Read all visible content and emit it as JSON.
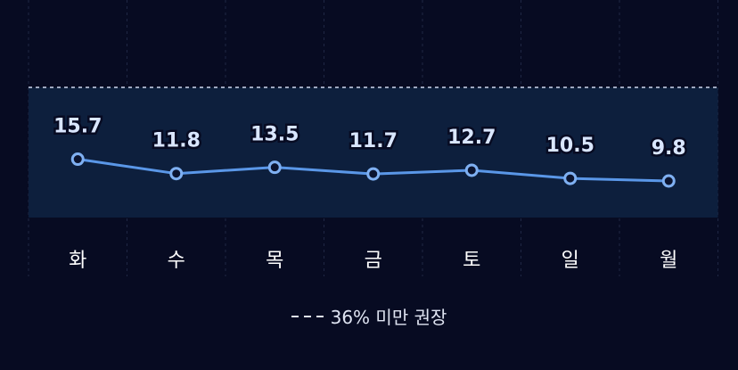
{
  "chart_data": {
    "type": "line",
    "categories": [
      "화",
      "수",
      "목",
      "금",
      "토",
      "일",
      "월"
    ],
    "values": [
      15.7,
      11.8,
      13.5,
      11.7,
      12.7,
      10.5,
      9.8
    ],
    "highlight_category": "일",
    "reference_line": {
      "value": 36,
      "label": "36% 미만 권장",
      "style": "dashed"
    },
    "colors": {
      "background": "#070b22",
      "band": "#0d1f3d",
      "line": "#5a97e8",
      "point_fill": "#0b1430",
      "value_label": "#d9e6ff",
      "category_label": "#ffffff",
      "highlight_label": "#ff6b6b"
    }
  },
  "legend": {
    "icon": "dashed-line-icon",
    "label": "36% 미만 권장"
  }
}
